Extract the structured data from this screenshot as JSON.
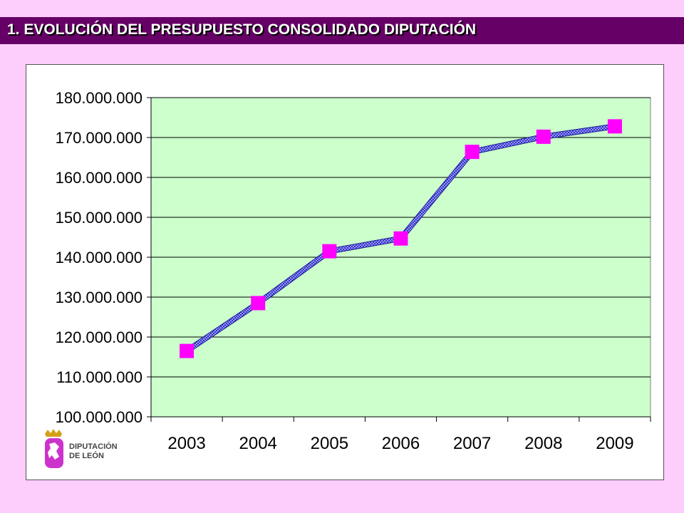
{
  "header": {
    "title": "1. EVOLUCIÓN DEL PRESUPUESTO CONSOLIDADO DIPUTACIÓN"
  },
  "logo": {
    "line1": "DIPUTACIÓN",
    "line2": "DE LEÓN"
  },
  "colors": {
    "page_background": "#fdcdfb",
    "title_bar": "#660066",
    "plot_area": "#ccffcc",
    "line": "#3333cc",
    "marker": "#ff00ff"
  },
  "chart_data": {
    "type": "line",
    "title": "",
    "xlabel": "",
    "ylabel": "",
    "categories": [
      "2003",
      "2004",
      "2005",
      "2006",
      "2007",
      "2008",
      "2009"
    ],
    "series": [
      {
        "values": [
          116500000,
          128500000,
          141500000,
          144700000,
          166400000,
          170200000,
          172800000
        ]
      }
    ],
    "ylim": [
      100000000,
      180000000
    ],
    "yticks": [
      100000000,
      110000000,
      120000000,
      130000000,
      140000000,
      150000000,
      160000000,
      170000000,
      180000000
    ],
    "ytick_labels": [
      "100.000.000",
      "110.000.000",
      "120.000.000",
      "130.000.000",
      "140.000.000",
      "150.000.000",
      "160.000.000",
      "170.000.000",
      "180.000.000"
    ],
    "grid": true,
    "legend": "none",
    "marker": "square"
  }
}
